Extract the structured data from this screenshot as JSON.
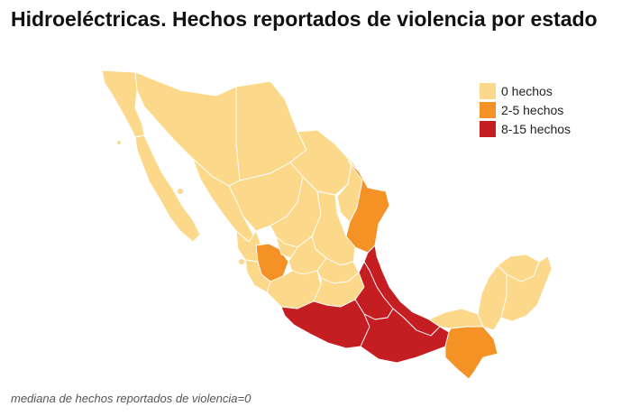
{
  "title": "Hidroeléctricas. Hechos reportados de violencia por estado",
  "footnote": "mediana de hechos reportados de violencia=0",
  "colors": {
    "none": "#FCD98A",
    "mid": "#F59226",
    "high": "#C41E22",
    "background": "#ffffff"
  },
  "legend": [
    {
      "label": "0 hechos",
      "color": "#FCD98A"
    },
    {
      "label": "2-5 hechos",
      "color": "#F59226"
    },
    {
      "label": "8-15 hechos",
      "color": "#C41E22"
    }
  ],
  "states_highlighted": [
    {
      "state": "Jalisco",
      "category": "2-5 hechos"
    },
    {
      "state": "Tamaulipas",
      "category": "2-5 hechos"
    },
    {
      "state": "Chiapas",
      "category": "2-5 hechos"
    },
    {
      "state": "Veracruz",
      "category": "8-15 hechos"
    },
    {
      "state": "Puebla",
      "category": "8-15 hechos"
    },
    {
      "state": "Guerrero",
      "category": "8-15 hechos"
    },
    {
      "state": "Oaxaca",
      "category": "8-15 hechos"
    }
  ]
}
